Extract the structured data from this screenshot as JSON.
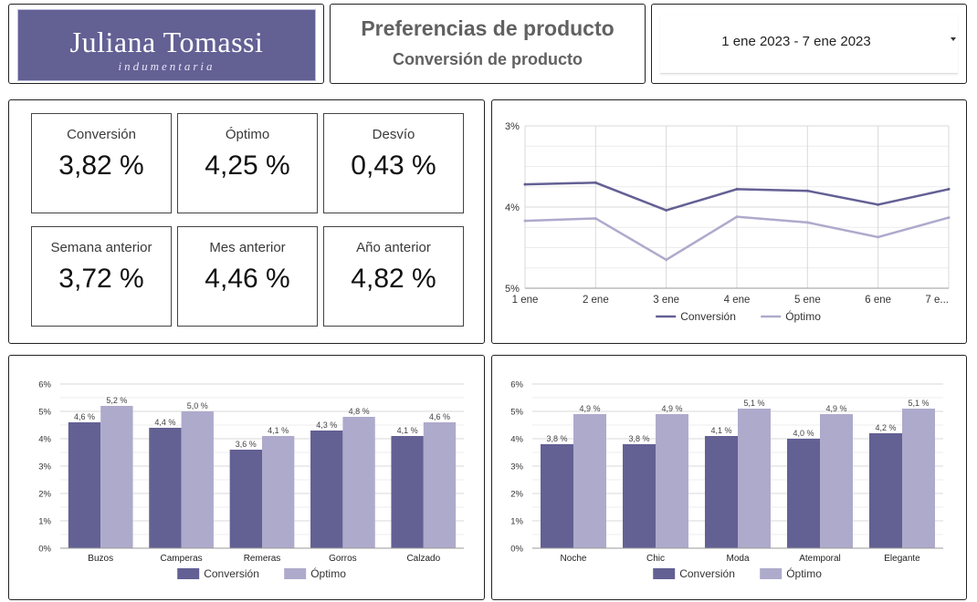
{
  "header": {
    "logo_name": "Juliana Tomassi",
    "logo_sub": "indumentaria",
    "title": "Preferencias de producto",
    "subtitle": "Conversión de producto",
    "date_range": "1 ene 2023 - 7 ene 2023"
  },
  "kpis": [
    {
      "label": "Conversión",
      "value": "3,82 %"
    },
    {
      "label": "Óptimo",
      "value": "4,25 %"
    },
    {
      "label": "Desvío",
      "value": "0,43 %"
    },
    {
      "label": "Semana anterior",
      "value": "3,72 %"
    },
    {
      "label": "Mes anterior",
      "value": "4,46 %"
    },
    {
      "label": "Año anterior",
      "value": "4,82 %"
    }
  ],
  "colors": {
    "conversion": "#636094",
    "optimo": "#aeaacc",
    "grid": "#d9d9d9"
  },
  "chart_data": [
    {
      "type": "line",
      "x": [
        "1 ene",
        "2 ene",
        "3 ene",
        "4 ene",
        "5 ene",
        "6 ene",
        "7 e..."
      ],
      "y_ticks": [
        "3%",
        "4%",
        "5%"
      ],
      "ylim": [
        3,
        5
      ],
      "y_reversed": true,
      "grid": true,
      "legend_position": "bottom",
      "series": [
        {
          "name": "Conversión",
          "values": [
            3.72,
            3.7,
            4.04,
            3.78,
            3.8,
            3.97,
            3.78
          ]
        },
        {
          "name": "Óptimo",
          "values": [
            4.17,
            4.14,
            4.65,
            4.12,
            4.19,
            4.37,
            4.13
          ]
        }
      ]
    },
    {
      "type": "bar",
      "categories": [
        "Buzos",
        "Camperas",
        "Remeras",
        "Gorros",
        "Calzado"
      ],
      "y_ticks": [
        "0%",
        "1%",
        "2%",
        "3%",
        "4%",
        "5%",
        "6%"
      ],
      "ylim": [
        0,
        6
      ],
      "grid": true,
      "legend_position": "bottom",
      "series": [
        {
          "name": "Conversión",
          "values": [
            4.6,
            4.4,
            3.6,
            4.3,
            4.1
          ],
          "labels": [
            "4,6 %",
            "4,4 %",
            "3,6 %",
            "4,3 %",
            "4,1 %"
          ]
        },
        {
          "name": "Óptimo",
          "values": [
            5.2,
            5.0,
            4.1,
            4.8,
            4.6
          ],
          "labels": [
            "5,2 %",
            "5,0 %",
            "4,1 %",
            "4,8 %",
            "4,6 %"
          ]
        }
      ]
    },
    {
      "type": "bar",
      "categories": [
        "Noche",
        "Chic",
        "Moda",
        "Atemporal",
        "Elegante"
      ],
      "y_ticks": [
        "0%",
        "1%",
        "2%",
        "3%",
        "4%",
        "5%",
        "6%"
      ],
      "ylim": [
        0,
        6
      ],
      "grid": true,
      "legend_position": "bottom",
      "series": [
        {
          "name": "Conversión",
          "values": [
            3.8,
            3.8,
            4.1,
            4.0,
            4.2
          ],
          "labels": [
            "3,8 %",
            "3,8 %",
            "4,1 %",
            "4,0 %",
            "4,2 %"
          ]
        },
        {
          "name": "Óptimo",
          "values": [
            4.9,
            4.9,
            5.1,
            4.9,
            5.1
          ],
          "labels": [
            "4,9 %",
            "4,9 %",
            "5,1 %",
            "4,9 %",
            "5,1 %"
          ]
        }
      ]
    }
  ]
}
